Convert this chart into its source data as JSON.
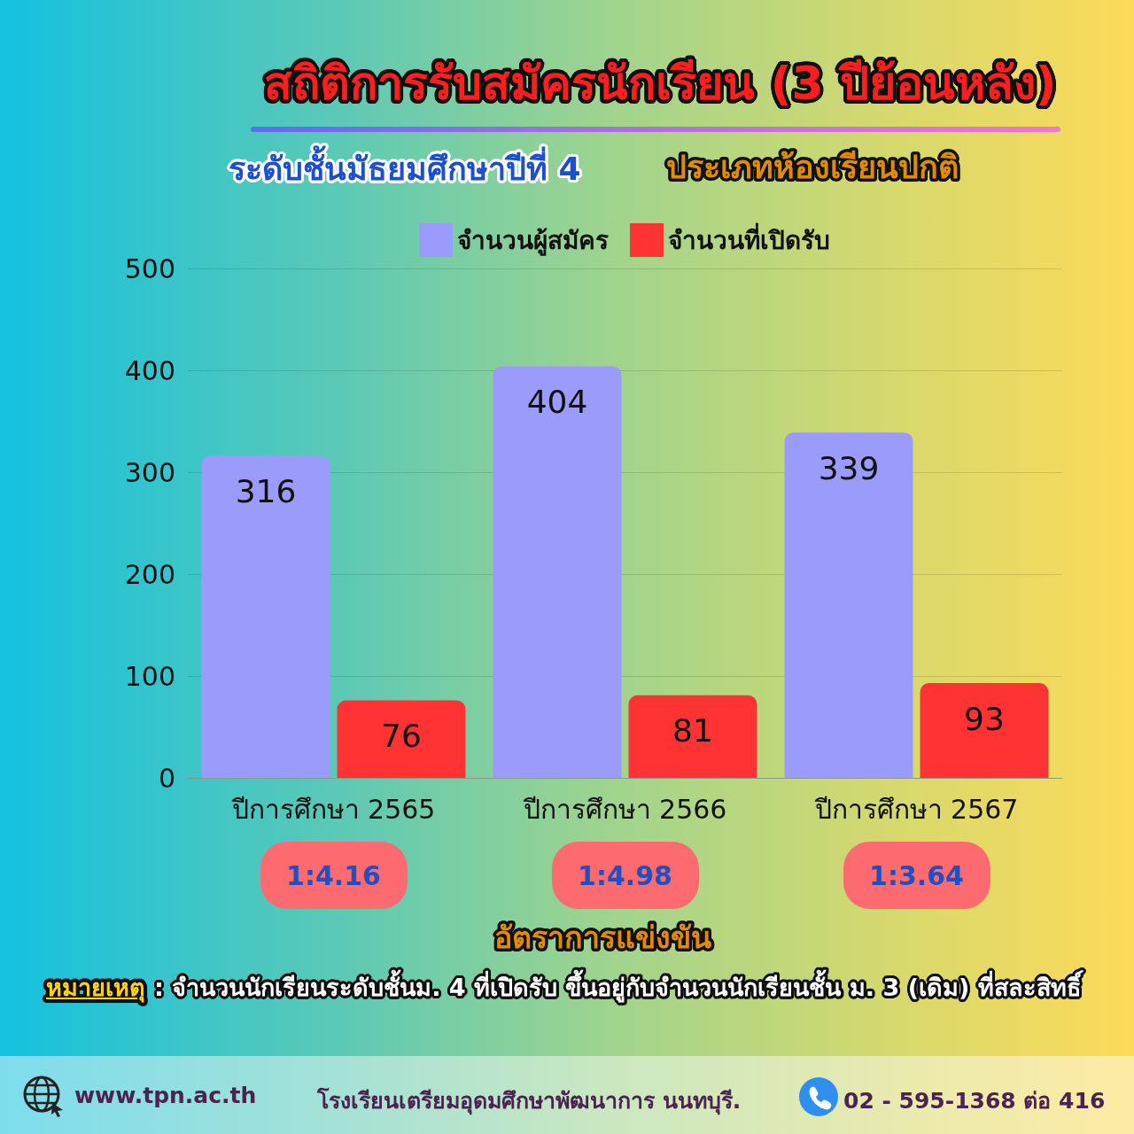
{
  "chart_data": {
    "type": "bar",
    "title": "สถิติการรับสมัครนักเรียน (3 ปีย้อนหลัง)",
    "subtitle": "ระดับชั้นมัธยมศึกษาปีที่ 4",
    "categories": [
      "ปีการศึกษา 2565",
      "ปีการศึกษา 2566",
      "ปีการศึกษา 2567"
    ],
    "series": [
      {
        "name": "จำนวนผู้สมัคร",
        "color": "#9b9bfc",
        "values": [
          316,
          404,
          339
        ]
      },
      {
        "name": "จำนวนที่เปิดรับ",
        "color": "#ff3333",
        "values": [
          76,
          81,
          93
        ]
      }
    ],
    "ylim": [
      0,
      500
    ],
    "yticks": [
      0,
      100,
      200,
      300,
      400,
      500
    ],
    "grid": "y",
    "legend": "top",
    "data_labels": true,
    "annotations": [
      "ประเภทห้องเรียนปกติ",
      "1:4.16",
      "1:4.98",
      "1:3.64",
      "อัตราการแข่งขัน",
      "หมายเหตุ",
      ": จำนวนนักเรียนระดับชั้นม. 4 ที่เปิดรับ ขึ้นอยู่กับจำนวนนักเรียนชั้น ม. 3 (เดิม) ที่สละสิทธิ์",
      "www.tpn.ac.th",
      "โรงเรียนเตรียมอุดมศึกษาพัฒนาการ นนทบุรี.",
      "02 - 595-1368 ต่อ 416"
    ]
  }
}
